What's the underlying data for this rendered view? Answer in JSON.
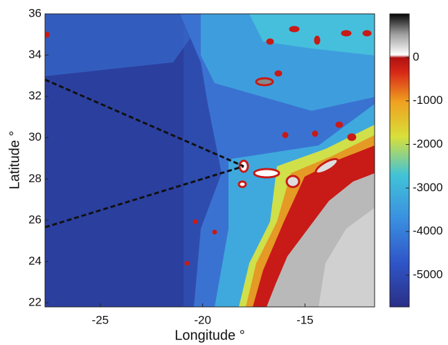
{
  "chart_data": {
    "type": "map",
    "xlabel": "Longitude °",
    "ylabel": "Latitude °",
    "xlim": [
      -27.7,
      -11.6
    ],
    "xticks": [
      -25,
      -20,
      -15
    ],
    "ylim": [
      21.8,
      36
    ],
    "yticks": [
      22,
      24,
      26,
      28,
      30,
      32,
      34,
      36
    ],
    "clim": [
      -5730,
      1000
    ],
    "cticks": [
      0,
      -1000,
      -2000,
      -3000,
      -4000,
      -5000
    ]
  }
}
